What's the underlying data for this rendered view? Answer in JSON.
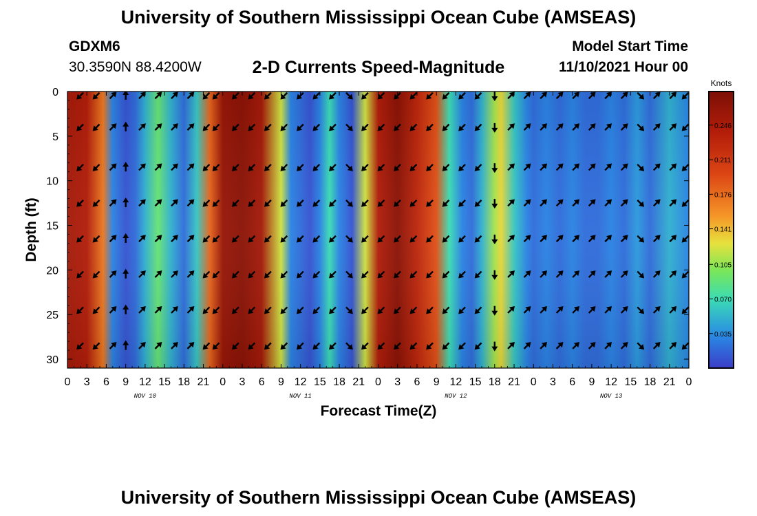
{
  "header": {
    "title": "University of Southern Mississippi Ocean Cube (AMSEAS)",
    "station": "GDXM6",
    "coordinates": "30.3590N  88.4200W",
    "subtitle": "2-D Currents Speed-Magnitude",
    "model_start_label": "Model Start Time",
    "model_start_value": "11/10/2021 Hour 00"
  },
  "footer": {
    "title": "University of Southern Mississippi Ocean Cube (AMSEAS)"
  },
  "chart_data": {
    "type": "heatmap",
    "xlabel": "Forecast Time(Z)",
    "ylabel": "Depth (ft)",
    "x_ticks": [
      "0",
      "3",
      "6",
      "9",
      "12",
      "15",
      "18",
      "21",
      "0",
      "3",
      "6",
      "9",
      "12",
      "15",
      "18",
      "21",
      "0",
      "3",
      "6",
      "9",
      "12",
      "15",
      "18",
      "21",
      "0",
      "3",
      "6",
      "9",
      "12",
      "15",
      "18",
      "21",
      "0"
    ],
    "x_range_hours": [
      0,
      96
    ],
    "date_labels": [
      {
        "label": "NOV 10",
        "hour": 12
      },
      {
        "label": "NOV 11",
        "hour": 36
      },
      {
        "label": "NOV 12",
        "hour": 60
      },
      {
        "label": "NOV 13",
        "hour": 84
      }
    ],
    "y_ticks": [
      0,
      5,
      10,
      15,
      20,
      25,
      30
    ],
    "y_range_ft": [
      0,
      31
    ],
    "colorbar": {
      "units": "Knots",
      "range": [
        0,
        0.28
      ],
      "ticks": [
        "0.246",
        "0.211",
        "0.176",
        "0.141",
        "0.105",
        "0.070",
        "0.035"
      ]
    },
    "speed_profile": {
      "hours": [
        0,
        3,
        5.5,
        7,
        9,
        10.5,
        12,
        14,
        16,
        18,
        20,
        22,
        24,
        27,
        30,
        33,
        34.5,
        36,
        37.5,
        39,
        40.5,
        42,
        44,
        46,
        48,
        51,
        54,
        57,
        59,
        61,
        62.5,
        64,
        66,
        67,
        69,
        71,
        72,
        74,
        76,
        78,
        80,
        82,
        84,
        86,
        88,
        90,
        93,
        96
      ],
      "knots": [
        0.25,
        0.24,
        0.17,
        0.03,
        0.01,
        0.02,
        0.05,
        0.09,
        0.05,
        0.02,
        0.06,
        0.18,
        0.26,
        0.27,
        0.25,
        0.12,
        0.03,
        0.02,
        0.01,
        0.03,
        0.07,
        0.03,
        0.01,
        0.12,
        0.24,
        0.27,
        0.23,
        0.19,
        0.07,
        0.03,
        0.02,
        0.05,
        0.11,
        0.13,
        0.06,
        0.03,
        0.02,
        0.03,
        0.02,
        0.03,
        0.02,
        0.02,
        0.03,
        0.02,
        0.04,
        0.02,
        0.05,
        0.03
      ]
    },
    "arrow_depths_ft": [
      0,
      4,
      8.5,
      12.5,
      16.5,
      20.5,
      24.5,
      28.5
    ],
    "arrow_hours": [
      2,
      4.5,
      7,
      9,
      11.5,
      14,
      16.5,
      19,
      21.5,
      23,
      26,
      28.5,
      31,
      33.5,
      36,
      38.5,
      41,
      43.5,
      46,
      48.5,
      51,
      53.5,
      56,
      58.5,
      61,
      63.5,
      66,
      68.5,
      71,
      73.5,
      76,
      78.5,
      81,
      83.5,
      86,
      88.5,
      91,
      93.5,
      95.5
    ],
    "arrow_directions_deg": [
      225,
      225,
      45,
      90,
      45,
      45,
      45,
      45,
      225,
      225,
      225,
      225,
      225,
      225,
      225,
      225,
      225,
      315,
      225,
      225,
      225,
      225,
      225,
      225,
      225,
      225,
      270,
      45,
      45,
      45,
      45,
      45,
      45,
      45,
      45,
      315,
      45,
      45,
      225
    ]
  }
}
